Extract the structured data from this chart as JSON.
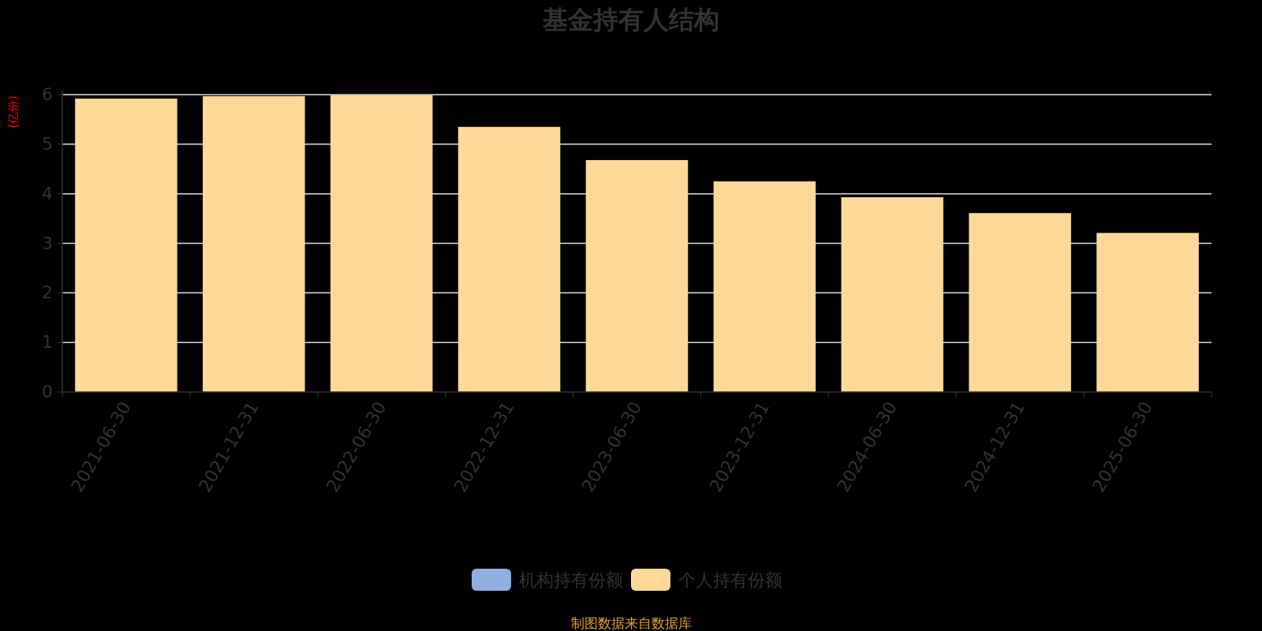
{
  "chart_data": {
    "type": "bar",
    "title": "基金持有人结构",
    "ylabel": "(亿份)",
    "stacked": true,
    "categories": [
      "2021-06-30",
      "2021-12-31",
      "2022-06-30",
      "2022-12-31",
      "2023-06-30",
      "2023-12-31",
      "2024-06-30",
      "2024-12-31",
      "2025-06-30"
    ],
    "series": [
      {
        "name": "机构持有份额",
        "color": "#91aee0",
        "values": [
          null,
          null,
          null,
          null,
          null,
          0,
          0,
          0,
          0
        ]
      },
      {
        "name": "个人持有份额",
        "color": "#ffd998",
        "values": [
          5.92,
          5.97,
          5.99,
          5.35,
          4.68,
          4.25,
          3.93,
          3.61,
          3.21
        ]
      }
    ],
    "ylim": [
      0,
      6
    ],
    "yticks": [
      0,
      1,
      2,
      3,
      4,
      5,
      6
    ],
    "grid": "y",
    "legend": "bottom",
    "annotations": [
      "制图数据来自数据库"
    ]
  }
}
